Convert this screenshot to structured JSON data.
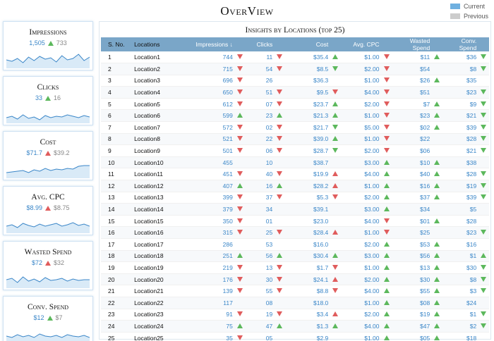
{
  "page": {
    "title": "OverView"
  },
  "legend": {
    "current": {
      "label": "Current",
      "color": "#6fb0e0"
    },
    "previous": {
      "label": "Previous",
      "color": "#cccccc"
    }
  },
  "colors": {
    "accent": "#3a86c8",
    "up_good": "#5cb85c",
    "down_bad": "#e05c5c",
    "header": "#7aa6c8"
  },
  "cards": [
    {
      "title": "Impressions",
      "current": "1,505",
      "previous": "733",
      "trend": "up-g"
    },
    {
      "title": "Clicks",
      "current": "33",
      "previous": "16",
      "trend": "up-g"
    },
    {
      "title": "Cost",
      "current": "$71.7",
      "previous": "$39.2",
      "trend": "up-r"
    },
    {
      "title": "Avg. CPC",
      "current": "$8.99",
      "previous": "$8.75",
      "trend": "up-r"
    },
    {
      "title": "Wasted Spend",
      "current": "$72",
      "previous": "$32",
      "trend": "up-r"
    },
    {
      "title": "Conv. Spend",
      "current": "$12",
      "previous": "$7",
      "trend": "up-g"
    }
  ],
  "table": {
    "title": "Insights by Locations (top 25)",
    "columns": [
      "S. No.",
      "Locations",
      "Impressions ↓",
      "Clicks",
      "Cost",
      "Avg. CPC",
      "Wasted Spend",
      "Conv. Spend"
    ],
    "rows": [
      [
        "1",
        "Location1",
        "744",
        "dn-r",
        "11",
        "dn-r",
        "$35.4",
        "up-g",
        "$1.00",
        "dn-r",
        "$11",
        "up-g",
        "$36",
        "dn-g"
      ],
      [
        "2",
        "Location2",
        "715",
        "dn-r",
        "54",
        "dn-r",
        "$8.5",
        "dn-g",
        "$2.00",
        "dn-r",
        "$54",
        "",
        "$8",
        "dn-g"
      ],
      [
        "3",
        "Location3",
        "696",
        "dn-r",
        "26",
        "",
        "$36.3",
        "",
        "$1.00",
        "dn-r",
        "$26",
        "up-g",
        "$35",
        ""
      ],
      [
        "4",
        "Location4",
        "650",
        "dn-r",
        "51",
        "dn-r",
        "$9.5",
        "dn-r",
        "$4.00",
        "dn-r",
        "$51",
        "",
        "$23",
        "dn-g"
      ],
      [
        "5",
        "Location5",
        "612",
        "dn-r",
        "07",
        "dn-r",
        "$23.7",
        "up-g",
        "$2.00",
        "dn-r",
        "$7",
        "up-g",
        "$9",
        "dn-g"
      ],
      [
        "6",
        "Location6",
        "599",
        "up-g",
        "23",
        "up-g",
        "$21.3",
        "up-g",
        "$1.00",
        "dn-r",
        "$23",
        "up-g",
        "$21",
        "dn-g"
      ],
      [
        "7",
        "Location7",
        "572",
        "dn-r",
        "02",
        "dn-r",
        "$21.7",
        "dn-g",
        "$5.00",
        "dn-r",
        "$02",
        "up-g",
        "$39",
        "dn-g"
      ],
      [
        "8",
        "Location8",
        "521",
        "dn-r",
        "22",
        "dn-r",
        "$39.0",
        "up-g",
        "$1.00",
        "dn-r",
        "$22",
        "",
        "$28",
        "dn-g"
      ],
      [
        "9",
        "Location9",
        "501",
        "dn-r",
        "06",
        "dn-r",
        "$28.7",
        "dn-g",
        "$2.00",
        "dn-r",
        "$06",
        "",
        "$21",
        "dn-g"
      ],
      [
        "10",
        "Location10",
        "455",
        "",
        "10",
        "",
        "$38.7",
        "",
        "$3.00",
        "up-g",
        "$10",
        "up-g",
        "$38",
        ""
      ],
      [
        "11",
        "Location11",
        "451",
        "dn-r",
        "40",
        "dn-r",
        "$19.9",
        "up-r",
        "$4.00",
        "up-g",
        "$40",
        "up-g",
        "$28",
        "dn-g"
      ],
      [
        "12",
        "Location12",
        "407",
        "up-g",
        "16",
        "up-g",
        "$28.2",
        "up-r",
        "$1.00",
        "up-g",
        "$16",
        "up-g",
        "$19",
        "dn-g"
      ],
      [
        "13",
        "Location13",
        "399",
        "dn-r",
        "37",
        "dn-r",
        "$5.3",
        "dn-r",
        "$2.00",
        "up-g",
        "$37",
        "up-g",
        "$39",
        "dn-g"
      ],
      [
        "14",
        "Location14",
        "379",
        "dn-r",
        "34",
        "",
        "$39.1",
        "",
        "$3.00",
        "up-g",
        "$34",
        "",
        "$5",
        ""
      ],
      [
        "15",
        "Location15",
        "350",
        "dn-r",
        "01",
        "",
        "$23.0",
        "",
        "$4.00",
        "dn-r",
        "$01",
        "up-g",
        "$28",
        ""
      ],
      [
        "16",
        "Location16",
        "315",
        "dn-r",
        "25",
        "dn-r",
        "$28.4",
        "up-r",
        "$1.00",
        "dn-r",
        "$25",
        "",
        "$23",
        "dn-g"
      ],
      [
        "17",
        "Location17",
        "286",
        "",
        "53",
        "",
        "$16.0",
        "",
        "$2.00",
        "up-g",
        "$53",
        "up-g",
        "$16",
        ""
      ],
      [
        "18",
        "Location18",
        "251",
        "up-g",
        "56",
        "up-g",
        "$30.4",
        "up-g",
        "$3.00",
        "up-g",
        "$56",
        "up-g",
        "$1",
        "up-g"
      ],
      [
        "19",
        "Location19",
        "219",
        "dn-r",
        "13",
        "dn-r",
        "$1.7",
        "dn-r",
        "$1.00",
        "up-g",
        "$13",
        "up-g",
        "$30",
        "dn-g"
      ],
      [
        "20",
        "Location20",
        "176",
        "dn-r",
        "30",
        "dn-r",
        "$24.1",
        "up-r",
        "$2.00",
        "up-g",
        "$30",
        "up-g",
        "$8",
        "dn-g"
      ],
      [
        "21",
        "Location21",
        "139",
        "dn-r",
        "55",
        "dn-r",
        "$8.8",
        "dn-r",
        "$4.00",
        "up-g",
        "$55",
        "up-g",
        "$3",
        "dn-g"
      ],
      [
        "22",
        "Location22",
        "117",
        "",
        "08",
        "",
        "$18.0",
        "",
        "$1.00",
        "up-g",
        "$08",
        "up-g",
        "$24",
        ""
      ],
      [
        "23",
        "Location23",
        "91",
        "dn-r",
        "19",
        "dn-r",
        "$3.4",
        "up-r",
        "$2.00",
        "up-g",
        "$19",
        "up-g",
        "$1",
        "dn-g"
      ],
      [
        "24",
        "Location24",
        "75",
        "up-g",
        "47",
        "up-g",
        "$1.3",
        "up-g",
        "$4.00",
        "up-g",
        "$47",
        "up-g",
        "$2",
        "dn-g"
      ],
      [
        "25",
        "Location25",
        "35",
        "dn-r",
        "05",
        "",
        "$2.9",
        "",
        "$1.00",
        "up-g",
        "$05",
        "up-g",
        "$18",
        ""
      ]
    ]
  }
}
